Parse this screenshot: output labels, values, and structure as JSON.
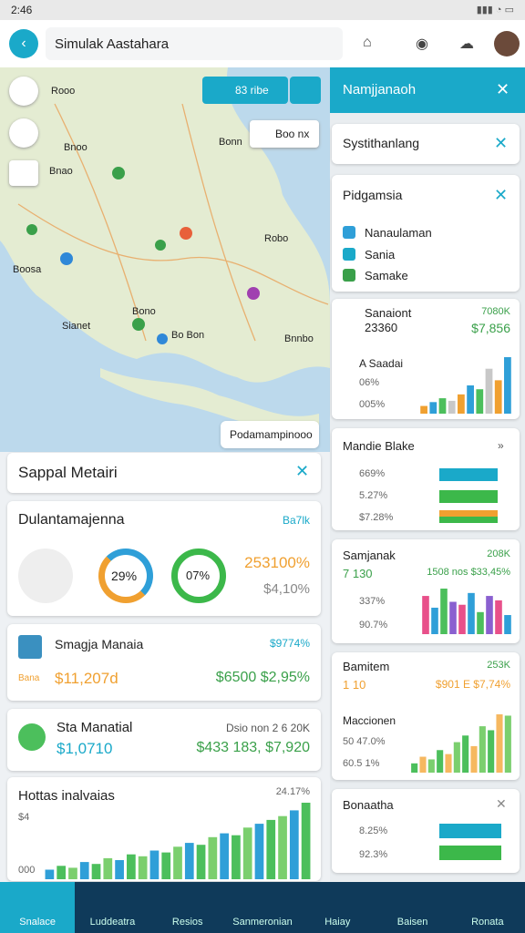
{
  "status_bar": {
    "time": "2:46"
  },
  "app_bar": {
    "search": "Simulak Aastahara"
  },
  "map": {
    "search_chip": "83 ribe",
    "filter_chip": "Boo nx",
    "labels": [
      "Rooo",
      "Bnoo",
      "Bnao",
      "Boosa",
      "Bonn",
      "Sianet",
      "Bo Bon",
      "Bono",
      "Robo",
      "Bnnbo"
    ],
    "popup": "Podamampinooo"
  },
  "left": {
    "header": "Sappal Metairi",
    "summary": {
      "title": "Dulantamajenna",
      "badge": "Ba7lk",
      "donut1": "29%",
      "donut2": "07%",
      "value": "253100%",
      "sub": "$4,10%"
    },
    "card1": {
      "title": "Smagja Manaia",
      "badge": "$9774%",
      "label": "Bana",
      "value": "$11,207d",
      "right": "$6500 $2,95%"
    },
    "card2": {
      "title": "Sta Manatial",
      "value": "$1,0710",
      "right_top": "Dsio non 2 6 20K",
      "right": "$433 183, $7,920"
    },
    "chart": {
      "title": "Hottas inalvaias",
      "label": "$4",
      "badge": "24.17%",
      "base": "000",
      "values": [
        10,
        14,
        12,
        18,
        16,
        22,
        20,
        26,
        24,
        30,
        28,
        34,
        38,
        36,
        44,
        48,
        46,
        54,
        58,
        62,
        66,
        72,
        80
      ],
      "colors": [
        "#2f9fd8",
        "#4cbf5c",
        "#7bcf6e"
      ]
    }
  },
  "right": {
    "header": "Namjjanaoh",
    "card_a": {
      "title": "Systithanlang"
    },
    "card_b": {
      "title": "Pidgamsia",
      "items": [
        "Nanaulaman",
        "Sania",
        "Samake"
      ]
    },
    "card_c": {
      "title": "Sanaiont",
      "value": "23360",
      "badge": "7080K",
      "amount": "$7,856",
      "sub": "A Saadai",
      "row1": "06%",
      "row2": "005%",
      "values": [
        12,
        18,
        24,
        20,
        30,
        44,
        38,
        70,
        52,
        88
      ],
      "colors": [
        "#f0a030",
        "#2f9fd8",
        "#4cbf5c",
        "#c8c8c8"
      ]
    },
    "card_d": {
      "title": "Mandie Blake",
      "rows": [
        "669%",
        "5.27%",
        "$7.28%"
      ]
    },
    "card_e": {
      "title": "Samjanak",
      "value": "7 130",
      "badge": "208K",
      "amount": "1508 nos $33,45%",
      "row1": "337%",
      "row2": "90.7%",
      "values": [
        52,
        36,
        62,
        44,
        40,
        56,
        30,
        52,
        46,
        26
      ],
      "colors": [
        "#e8508a",
        "#2f9fd8",
        "#4cbf5c",
        "#8a60d0"
      ]
    },
    "card_f": {
      "title": "Bamitem",
      "value": "1 10",
      "badge": "253K",
      "amount": "$901 E $7,74%",
      "sub": "Maccionen",
      "row1": "50 47.0%",
      "row2": "60.5 1%",
      "values": [
        14,
        24,
        20,
        34,
        28,
        46,
        56,
        40,
        70,
        64,
        88,
        86
      ],
      "colors": [
        "#4cbf5c",
        "#f6b860",
        "#7bcf6e"
      ]
    },
    "card_g": {
      "title": "Bonaatha",
      "rows": [
        "8.25%",
        "92.3%"
      ]
    }
  },
  "nav": [
    "Snalace",
    "Luddeatra",
    "Resios",
    "Sanmeronian",
    "Haiay",
    "Baisen",
    "Ronata"
  ]
}
